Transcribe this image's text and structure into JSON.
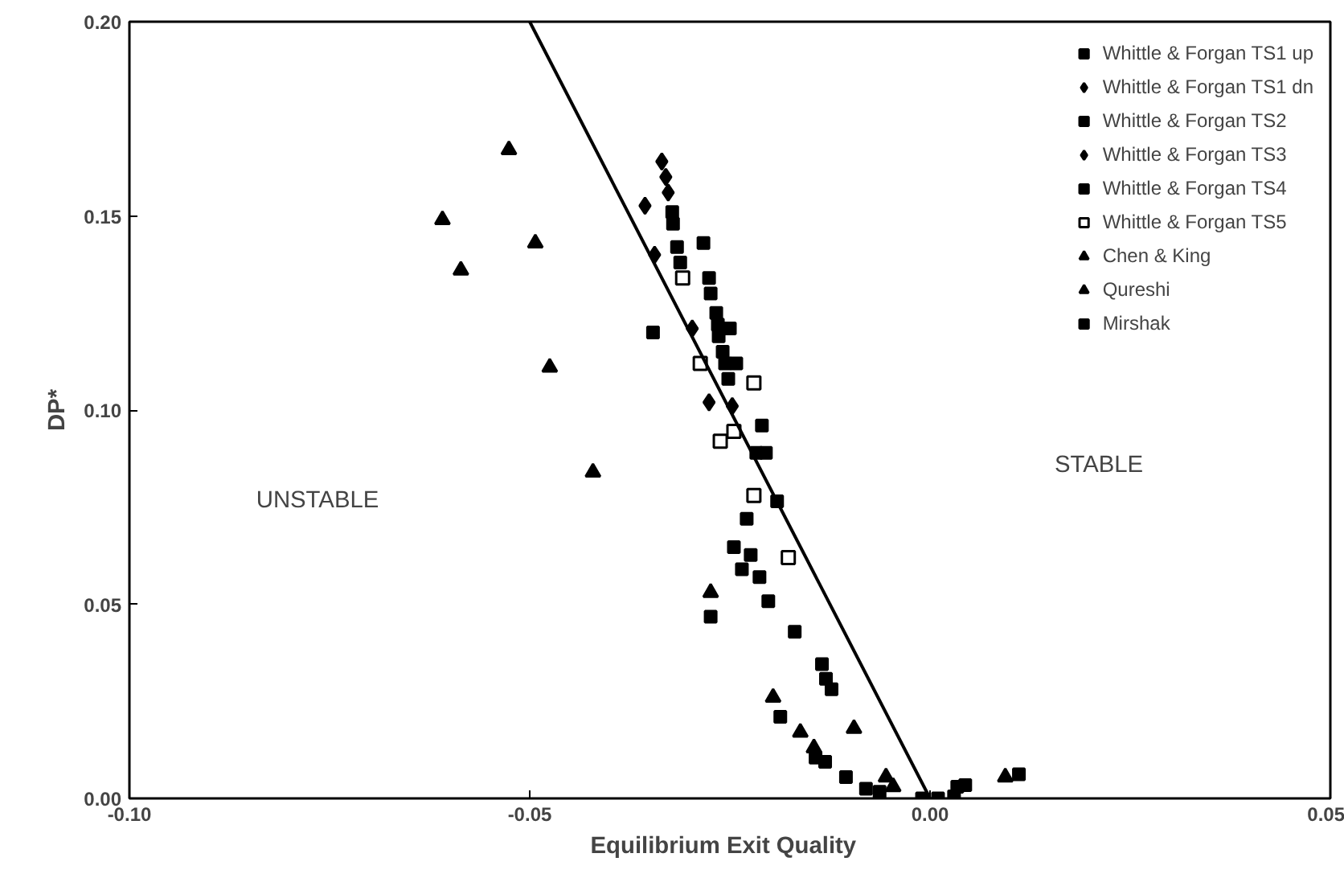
{
  "chart_data": {
    "type": "scatter",
    "xlabel": "Equilibrium  Exit  Quality",
    "ylabel": "DP*",
    "xlim": [
      -0.1,
      0.05
    ],
    "ylim": [
      0,
      0.2
    ],
    "xticks": [
      {
        "value": -0.1,
        "label": "-0.10"
      },
      {
        "value": -0.05,
        "label": "-0.05"
      },
      {
        "value": 0,
        "label": "0.00"
      },
      {
        "value": 0.05,
        "label": "0.05"
      }
    ],
    "yticks": [
      {
        "value": 0,
        "label": "0.00"
      },
      {
        "value": 0.05,
        "label": "0.05"
      },
      {
        "value": 0.1,
        "label": "0.10"
      },
      {
        "value": 0.15,
        "label": "0.15"
      },
      {
        "value": 0.2,
        "label": "0.20"
      }
    ],
    "grid": false,
    "legend": "top right",
    "annotations": [
      "UNSTABLE",
      "STABLE"
    ],
    "series": [
      {
        "name": "Whittle & Forgan TS1 up",
        "color": "#000000",
        "marker": "square",
        "x": [
          -0.0322,
          -0.0321,
          -0.0316,
          -0.0283,
          -0.0312,
          -0.0276,
          -0.0274,
          -0.0346
        ],
        "values": [
          0.151,
          0.148,
          0.142,
          0.143,
          0.138,
          0.134,
          0.13,
          0.12
        ]
      },
      {
        "name": "Whittle & Forgan TS1 dn",
        "color": "#000000",
        "marker": "diamond",
        "x": [
          -0.0335,
          -0.033,
          -0.0327,
          -0.0356
        ],
        "values": [
          0.164,
          0.16,
          0.156,
          0.1526
        ]
      },
      {
        "name": "Whittle & Forgan TS2",
        "color": "#000000",
        "marker": "square",
        "x": [
          -0.0267,
          -0.0265,
          -0.0264,
          -0.025,
          -0.0259,
          -0.0256,
          -0.0242,
          -0.0252,
          -0.021,
          -0.0217,
          -0.0205
        ],
        "values": [
          0.125,
          0.122,
          0.119,
          0.121,
          0.115,
          0.112,
          0.112,
          0.108,
          0.096,
          0.089,
          0.089
        ]
      },
      {
        "name": "Whittle & Forgan TS3",
        "color": "#000000",
        "marker": "diamond",
        "x": [
          -0.0344,
          -0.0297,
          -0.0276,
          -0.0247
        ],
        "values": [
          0.14,
          0.121,
          0.102,
          0.101
        ]
      },
      {
        "name": "Whittle & Forgan TS4",
        "color": "#000000",
        "marker": "square",
        "x": [
          -0.0191,
          -0.0229,
          -0.0245,
          -0.0224,
          -0.0235,
          -0.0213,
          -0.0202,
          -0.0274,
          -0.0169,
          -0.0135,
          -0.013,
          -0.0123,
          -0.0187,
          -0.0143,
          -0.0131,
          -0.0105,
          -0.008,
          -0.0063
        ],
        "values": [
          0.0765,
          0.072,
          0.0647,
          0.0627,
          0.059,
          0.057,
          0.0508,
          0.0468,
          0.0429,
          0.0346,
          0.0308,
          0.0281,
          0.021,
          0.0105,
          0.0094,
          0.0055,
          0.0025,
          0.0017
        ]
      },
      {
        "name": "Whittle & Forgan TS5",
        "color": "#000000",
        "marker": "square_open",
        "x": [
          -0.0309,
          -0.0287,
          -0.022,
          -0.0262,
          -0.0245,
          -0.022,
          -0.0177
        ],
        "values": [
          0.134,
          0.112,
          0.107,
          0.092,
          0.0945,
          0.078,
          0.062
        ]
      },
      {
        "name": "Chen & King",
        "color": "#000000",
        "marker": "triangle",
        "x": [
          -0.0274,
          -0.0196,
          -0.0162,
          -0.0145,
          -0.0095,
          -0.0055,
          -0.0046,
          0.0094
        ],
        "values": [
          0.053,
          0.026,
          0.017,
          0.013,
          0.018,
          0.0055,
          0.003,
          0.0055
        ]
      },
      {
        "name": "Qureshi",
        "color": "#000000",
        "marker": "triangle",
        "x": [
          -0.0526,
          -0.0609,
          -0.0493,
          -0.0586,
          -0.0475,
          -0.0421
        ],
        "values": [
          0.167,
          0.149,
          0.143,
          0.136,
          0.111,
          0.084
        ]
      },
      {
        "name": "Mirshak",
        "color": "#000000",
        "marker": "square",
        "x": [
          -0.001,
          0.001,
          0.003,
          0.0044,
          0.0034,
          0.0111
        ],
        "values": [
          0,
          0,
          0.0005,
          0.0034,
          0.003,
          0.0062
        ]
      },
      {
        "type": "line",
        "color": "#000000",
        "x": [
          -0.05,
          0
        ],
        "values": [
          0.2,
          0
        ]
      }
    ]
  }
}
